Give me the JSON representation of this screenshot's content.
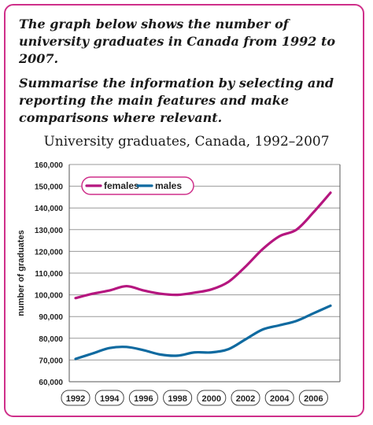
{
  "task": {
    "paragraph1": "The graph below shows the number of university graduates in Canada from 1992 to 2007.",
    "paragraph2": "Summarise the information by selecting and reporting the main features and make comparisons where relevant."
  },
  "colors": {
    "border": "#cf2f8a",
    "females": "#b5167f",
    "males": "#0f6aa0",
    "grid": "#999999"
  },
  "chart_data": {
    "type": "line",
    "title": "University graduates, Canada, 1992–2007",
    "xlabel": "",
    "ylabel": "number of graduates",
    "x": [
      1992,
      1993,
      1994,
      1995,
      1996,
      1997,
      1998,
      1999,
      2000,
      2001,
      2002,
      2003,
      2004,
      2005,
      2006,
      2007
    ],
    "xticks": [
      "1992",
      "1994",
      "1996",
      "1998",
      "2000",
      "2002",
      "2004",
      "2006"
    ],
    "yticks": [
      "60,000",
      "70,000",
      "80,000",
      "90,000",
      "100,000",
      "110,000",
      "120,000",
      "130,000",
      "140,000",
      "150,000",
      "160,000"
    ],
    "ylim": [
      60000,
      160000
    ],
    "xlim": [
      1992,
      2007
    ],
    "grid": "horizontal",
    "legend_position": "top-left",
    "series": [
      {
        "name": "females",
        "values": [
          98500,
          100500,
          102000,
          104000,
          102000,
          100500,
          100000,
          101000,
          102500,
          106000,
          113000,
          121000,
          127000,
          130000,
          138000,
          147000
        ]
      },
      {
        "name": "males",
        "values": [
          70500,
          73000,
          75500,
          76000,
          74500,
          72500,
          72000,
          73500,
          73500,
          75000,
          79500,
          84000,
          86000,
          88000,
          91500,
          95000
        ]
      }
    ]
  }
}
